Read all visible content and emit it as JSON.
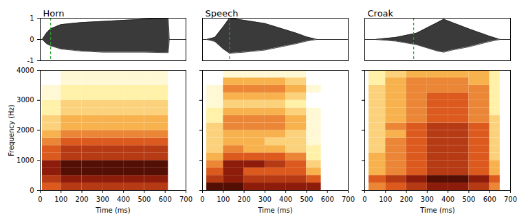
{
  "chart_data": [
    {
      "type": "waveform_spectrogram",
      "title": "Horn",
      "waveform": {
        "x": [
          0,
          10,
          30,
          50,
          100,
          200,
          300,
          400,
          500,
          600,
          615,
          620,
          700
        ],
        "upper": [
          0,
          0,
          0.3,
          0.5,
          0.7,
          0.8,
          0.85,
          0.9,
          0.95,
          1.0,
          1.0,
          0,
          0
        ],
        "lower": [
          0,
          0,
          -0.2,
          -0.3,
          -0.45,
          -0.55,
          -0.6,
          -0.6,
          -0.6,
          -0.62,
          -0.62,
          0,
          0
        ],
        "cursor_x": 50,
        "xlim": [
          0,
          700
        ],
        "ylim": [
          -1,
          1
        ],
        "yticks": [
          -1,
          0,
          1
        ],
        "tick_labels": "y"
      },
      "spectrogram": {
        "time_bins": [
          10,
          100,
          200,
          300,
          400,
          500,
          615
        ],
        "freq_bins": [
          0,
          250,
          500,
          750,
          1000,
          1250,
          1500,
          1750,
          2000,
          2250,
          2500,
          2750,
          3000,
          3250,
          3500,
          3750,
          4000
        ],
        "intensity": [
          [
            6,
            7,
            7,
            7,
            7,
            7
          ],
          [
            7,
            8,
            8,
            8,
            8,
            8
          ],
          [
            8,
            9,
            9,
            9,
            9,
            9
          ],
          [
            8,
            9,
            9,
            9,
            9,
            9
          ],
          [
            6,
            7,
            7,
            7,
            7,
            7
          ],
          [
            6,
            7,
            7,
            7,
            7,
            7
          ],
          [
            5,
            6,
            6,
            6,
            6,
            6
          ],
          [
            4,
            5,
            5,
            5,
            5,
            5
          ],
          [
            3,
            4,
            4,
            4,
            4,
            4
          ],
          [
            3,
            4,
            4,
            4,
            4,
            4
          ],
          [
            2,
            3,
            3,
            3,
            3,
            3
          ],
          [
            2,
            3,
            3,
            3,
            3,
            3
          ],
          [
            1,
            2,
            2,
            2,
            2,
            2
          ],
          [
            1,
            2,
            2,
            2,
            2,
            2
          ],
          [
            0,
            1,
            1,
            1,
            1,
            1
          ],
          [
            0,
            1,
            1,
            1,
            1,
            1
          ]
        ],
        "intensity_lim": [
          0,
          10
        ],
        "xlim": [
          0,
          700
        ],
        "ylim": [
          0,
          4000
        ],
        "xticks": [
          0,
          100,
          200,
          300,
          400,
          500,
          600,
          700
        ],
        "yticks": [
          0,
          1000,
          2000,
          3000,
          4000
        ],
        "xlabel": "Time (ms)",
        "ylabel": "Frequency (Hz)"
      }
    },
    {
      "type": "waveform_spectrogram",
      "title": "Speech",
      "waveform": {
        "x": [
          0,
          20,
          60,
          100,
          130,
          200,
          300,
          400,
          450,
          500,
          550,
          700
        ],
        "upper": [
          0,
          0,
          0.1,
          0.6,
          1.0,
          0.9,
          0.75,
          0.45,
          0.3,
          0.12,
          0,
          0
        ],
        "lower": [
          0,
          0,
          -0.1,
          -0.45,
          -0.65,
          -0.6,
          -0.5,
          -0.3,
          -0.2,
          -0.08,
          0,
          0
        ],
        "cursor_x": 130,
        "xlim": [
          0,
          700
        ],
        "ylim": [
          -1,
          1
        ],
        "tick_labels": false
      },
      "spectrogram": {
        "time_bins": [
          20,
          100,
          200,
          300,
          400,
          500,
          570
        ],
        "freq_bins": [
          0,
          250,
          500,
          750,
          1000,
          1250,
          1500,
          1750,
          2000,
          2250,
          2500,
          2750,
          3000,
          3250,
          3500,
          3750,
          4000
        ],
        "intensity": [
          [
            9,
            9,
            8,
            8,
            8,
            8
          ],
          [
            7,
            8,
            7,
            7,
            7,
            6
          ],
          [
            6,
            8,
            6,
            6,
            6,
            4
          ],
          [
            5,
            8,
            8,
            7,
            6,
            3
          ],
          [
            4,
            6,
            6,
            6,
            5,
            2
          ],
          [
            3,
            5,
            4,
            4,
            3,
            2
          ],
          [
            3,
            4,
            4,
            3,
            3,
            1
          ],
          [
            3,
            4,
            4,
            4,
            3,
            1
          ],
          [
            3,
            5,
            5,
            5,
            4,
            1
          ],
          [
            2,
            5,
            5,
            5,
            4,
            1
          ],
          [
            2,
            4,
            4,
            4,
            3,
            1
          ],
          [
            1,
            3,
            3,
            3,
            2,
            0
          ],
          [
            1,
            4,
            4,
            4,
            3,
            0
          ],
          [
            1,
            5,
            5,
            5,
            4,
            1
          ],
          [
            0,
            4,
            4,
            4,
            3,
            0
          ],
          [
            0,
            1,
            1,
            1,
            1,
            0
          ]
        ],
        "intensity_lim": [
          0,
          10
        ],
        "xlim": [
          0,
          700
        ],
        "ylim": [
          0,
          4000
        ],
        "xticks": [
          0,
          100,
          200,
          300,
          400,
          500,
          600,
          700
        ],
        "yticks": [
          0,
          1000,
          2000,
          3000,
          4000
        ],
        "xlabel": "Time (ms)",
        "tick_labels": "x"
      }
    },
    {
      "type": "waveform_spectrogram",
      "title": "Croak",
      "waveform": {
        "x": [
          0,
          50,
          150,
          250,
          300,
          350,
          380,
          420,
          500,
          600,
          650,
          700
        ],
        "upper": [
          0,
          0,
          0.1,
          0.3,
          0.55,
          0.8,
          0.95,
          0.8,
          0.5,
          0.15,
          0,
          0
        ],
        "lower": [
          0,
          0,
          -0.08,
          -0.25,
          -0.4,
          -0.55,
          -0.6,
          -0.5,
          -0.35,
          -0.1,
          0,
          0
        ],
        "cursor_x": 235,
        "xlim": [
          0,
          700
        ],
        "ylim": [
          -1,
          1
        ],
        "tick_labels": false
      },
      "spectrogram": {
        "time_bins": [
          20,
          100,
          200,
          300,
          400,
          500,
          600,
          650
        ],
        "freq_bins": [
          0,
          250,
          500,
          750,
          1000,
          1250,
          1500,
          1750,
          2000,
          2250,
          2500,
          2750,
          3000,
          3250,
          3500,
          3750,
          4000
        ],
        "intensity": [
          [
            5,
            6,
            7,
            8,
            8,
            7,
            5
          ],
          [
            6,
            7,
            8,
            9,
            9,
            8,
            6
          ],
          [
            4,
            5,
            6,
            7,
            7,
            6,
            4
          ],
          [
            4,
            5,
            6,
            7,
            7,
            6,
            4
          ],
          [
            4,
            5,
            6,
            7,
            7,
            6,
            3
          ],
          [
            3,
            5,
            6,
            7,
            7,
            6,
            3
          ],
          [
            3,
            5,
            6,
            7,
            7,
            6,
            3
          ],
          [
            3,
            4,
            6,
            7,
            7,
            6,
            3
          ],
          [
            3,
            5,
            6,
            7,
            7,
            6,
            3
          ],
          [
            3,
            4,
            5,
            6,
            6,
            5,
            3
          ],
          [
            3,
            4,
            5,
            6,
            6,
            5,
            2
          ],
          [
            3,
            4,
            5,
            6,
            6,
            5,
            2
          ],
          [
            3,
            4,
            5,
            6,
            6,
            5,
            2
          ],
          [
            3,
            4,
            5,
            5,
            5,
            5,
            2
          ],
          [
            2,
            4,
            5,
            5,
            5,
            4,
            2
          ],
          [
            2,
            3,
            4,
            4,
            4,
            4,
            2
          ]
        ],
        "intensity_lim": [
          0,
          10
        ],
        "xlim": [
          0,
          700
        ],
        "ylim": [
          0,
          4000
        ],
        "xticks": [
          0,
          100,
          200,
          300,
          400,
          500,
          600,
          700
        ],
        "yticks": [
          0,
          1000,
          2000,
          3000,
          4000
        ],
        "xlabel": "Time (ms)",
        "tick_labels": "x"
      }
    }
  ]
}
